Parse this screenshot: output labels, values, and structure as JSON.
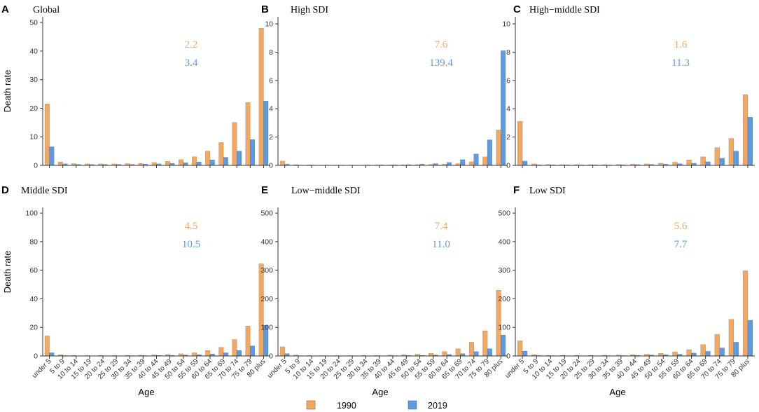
{
  "figure": {
    "xlabel": "Age",
    "ylabel": "Death rate",
    "colors": {
      "y1990": "#F4A85F",
      "y2019": "#5B9BE6"
    },
    "legend": [
      {
        "label": "1990",
        "color": "#F4A85F"
      },
      {
        "label": "2019",
        "color": "#5B9BE6"
      }
    ]
  },
  "chart_data": [
    {
      "type": "bar",
      "panel": "A",
      "title": "Global",
      "categories": [
        "under 5",
        "5 to 9",
        "10 to 14",
        "15 to 19",
        "20 to 24",
        "25 to 29",
        "30 to 34",
        "35 to 39",
        "40 to 44",
        "45 to 49",
        "50 to 54",
        "55 to 59",
        "60 to 64",
        "65 to 69",
        "70 to 74",
        "75 to 79",
        "80 plus"
      ],
      "series": [
        {
          "name": "1990",
          "values": [
            21.5,
            1.2,
            0.6,
            0.5,
            0.5,
            0.5,
            0.6,
            0.7,
            1.0,
            1.4,
            2.0,
            3.0,
            5.0,
            8.0,
            15.0,
            22.0,
            48.0
          ]
        },
        {
          "name": "2019",
          "values": [
            6.5,
            0.5,
            0.3,
            0.3,
            0.3,
            0.3,
            0.3,
            0.4,
            0.5,
            0.7,
            0.9,
            1.2,
            1.9,
            2.8,
            5.0,
            9.0,
            22.5
          ]
        }
      ],
      "annotations": [
        "2.2",
        "3.4"
      ],
      "ylim": [
        0,
        52
      ],
      "yticks": [
        0,
        10,
        20,
        30,
        40,
        50
      ],
      "xlabel": "",
      "ylabel": "Death rate"
    },
    {
      "type": "bar",
      "panel": "B",
      "title": "High SDI",
      "categories": [
        "under 5",
        "5 to 9",
        "10 to 14",
        "15 to 19",
        "20 to 24",
        "25 to 29",
        "30 to 34",
        "35 to 39",
        "40 to 44",
        "45 to 49",
        "50 to 54",
        "55 to 59",
        "60 to 64",
        "65 to 69",
        "70 to 74",
        "75 to 79",
        "80 plus"
      ],
      "series": [
        {
          "name": "1990",
          "values": [
            0.3,
            0.05,
            0.03,
            0.02,
            0.02,
            0.02,
            0.02,
            0.03,
            0.03,
            0.04,
            0.05,
            0.06,
            0.08,
            0.12,
            0.25,
            0.6,
            2.5
          ]
        },
        {
          "name": "2019",
          "values": [
            0.08,
            0.02,
            0.02,
            0.02,
            0.02,
            0.02,
            0.03,
            0.03,
            0.04,
            0.05,
            0.08,
            0.12,
            0.2,
            0.4,
            0.8,
            1.8,
            8.1
          ]
        }
      ],
      "annotations": [
        "7.6",
        "139.4"
      ],
      "ylim": [
        0,
        10.5
      ],
      "yticks": [
        0,
        2,
        4,
        6,
        8,
        10
      ],
      "xlabel": "",
      "ylabel": ""
    },
    {
      "type": "bar",
      "panel": "C",
      "title": "High−middle SDI",
      "categories": [
        "under 5",
        "5 to 9",
        "10 to 14",
        "15 to 19",
        "20 to 24",
        "25 to 29",
        "30 to 34",
        "35 to 39",
        "40 to 44",
        "45 to 49",
        "50 to 54",
        "55 to 59",
        "60 to 64",
        "65 to 69",
        "70 to 74",
        "75 to 79",
        "80 plus"
      ],
      "series": [
        {
          "name": "1990",
          "values": [
            3.1,
            0.1,
            0.06,
            0.05,
            0.05,
            0.05,
            0.05,
            0.06,
            0.08,
            0.1,
            0.15,
            0.22,
            0.38,
            0.6,
            1.25,
            1.9,
            5.0
          ]
        },
        {
          "name": "2019",
          "values": [
            0.3,
            0.04,
            0.03,
            0.03,
            0.03,
            0.03,
            0.03,
            0.04,
            0.05,
            0.06,
            0.08,
            0.11,
            0.15,
            0.25,
            0.5,
            1.0,
            3.4
          ]
        }
      ],
      "annotations": [
        "1.6",
        "11.3"
      ],
      "ylim": [
        0,
        10.5
      ],
      "yticks": [
        0,
        2,
        4,
        6,
        8,
        10
      ],
      "xlabel": "",
      "ylabel": ""
    },
    {
      "type": "bar",
      "panel": "D",
      "title": "Middle SDI",
      "categories": [
        "under 5",
        "5 to 9",
        "10 to 14",
        "15 to 19",
        "20 to 24",
        "25 to 29",
        "30 to 34",
        "35 to 39",
        "40 to 44",
        "45 to 49",
        "50 to 54",
        "55 to 59",
        "60 to 64",
        "65 to 69",
        "70 to 74",
        "75 to 79",
        "80 plus"
      ],
      "series": [
        {
          "name": "1990",
          "values": [
            14.0,
            0.8,
            0.4,
            0.3,
            0.3,
            0.3,
            0.4,
            0.5,
            0.7,
            1.0,
            1.5,
            2.2,
            3.8,
            6.0,
            11.5,
            21.0,
            64.5
          ]
        },
        {
          "name": "2019",
          "values": [
            2.2,
            0.25,
            0.15,
            0.15,
            0.15,
            0.15,
            0.2,
            0.25,
            0.3,
            0.4,
            0.6,
            0.9,
            1.4,
            2.2,
            3.8,
            7.0,
            21.5
          ]
        }
      ],
      "annotations": [
        "4.5",
        "10.5"
      ],
      "ylim": [
        0,
        104
      ],
      "yticks": [
        0,
        20,
        40,
        60,
        80,
        100
      ],
      "xlabel": "Age",
      "ylabel": "Death rate"
    },
    {
      "type": "bar",
      "panel": "E",
      "title": "Low−middle SDI",
      "categories": [
        "under 5",
        "5 to 9",
        "10 to 14",
        "15 to 19",
        "20 to 24",
        "25 to 29",
        "30 to 34",
        "35 to 39",
        "40 to 44",
        "45 to 49",
        "50 to 54",
        "55 to 59",
        "60 to 64",
        "65 to 69",
        "70 to 74",
        "75 to 79",
        "80 plus"
      ],
      "series": [
        {
          "name": "1990",
          "values": [
            32,
            3,
            1.5,
            1.2,
            1.2,
            1.2,
            1.5,
            2,
            3,
            4,
            6,
            9,
            15,
            25,
            48,
            88,
            230
          ]
        },
        {
          "name": "2019",
          "values": [
            8,
            1,
            0.6,
            0.5,
            0.5,
            0.5,
            0.6,
            0.8,
            1,
            1.5,
            2,
            3,
            5,
            8,
            15,
            25,
            73
          ]
        }
      ],
      "annotations": [
        "7.4",
        "11.0"
      ],
      "ylim": [
        0,
        520
      ],
      "yticks": [
        0,
        100,
        200,
        300,
        400,
        500
      ],
      "xlabel": "Age",
      "ylabel": ""
    },
    {
      "type": "bar",
      "panel": "F",
      "title": "Low SDI",
      "categories": [
        "under 5",
        "5 to 9",
        "10 to 14",
        "15 to 19",
        "20 to 24",
        "25 to 29",
        "30 to 34",
        "35 to 39",
        "40 to 44",
        "45 to 49",
        "50 to 54",
        "55 to 59",
        "60 to 64",
        "65 to 69",
        "70 to 74",
        "75 to 79",
        "80 plus"
      ],
      "series": [
        {
          "name": "1990",
          "values": [
            53,
            4,
            2,
            2,
            2,
            2,
            2.5,
            3,
            4.5,
            6,
            9,
            14,
            22,
            40,
            75,
            128,
            298
          ]
        },
        {
          "name": "2019",
          "values": [
            17,
            1.5,
            1,
            0.8,
            0.8,
            0.8,
            1,
            1.3,
            2,
            3,
            4,
            6,
            10,
            16,
            28,
            48,
            125
          ]
        }
      ],
      "annotations": [
        "5.6",
        "7.7"
      ],
      "ylim": [
        0,
        520
      ],
      "yticks": [
        0,
        100,
        200,
        300,
        400,
        500
      ],
      "xlabel": "Age",
      "ylabel": ""
    }
  ]
}
